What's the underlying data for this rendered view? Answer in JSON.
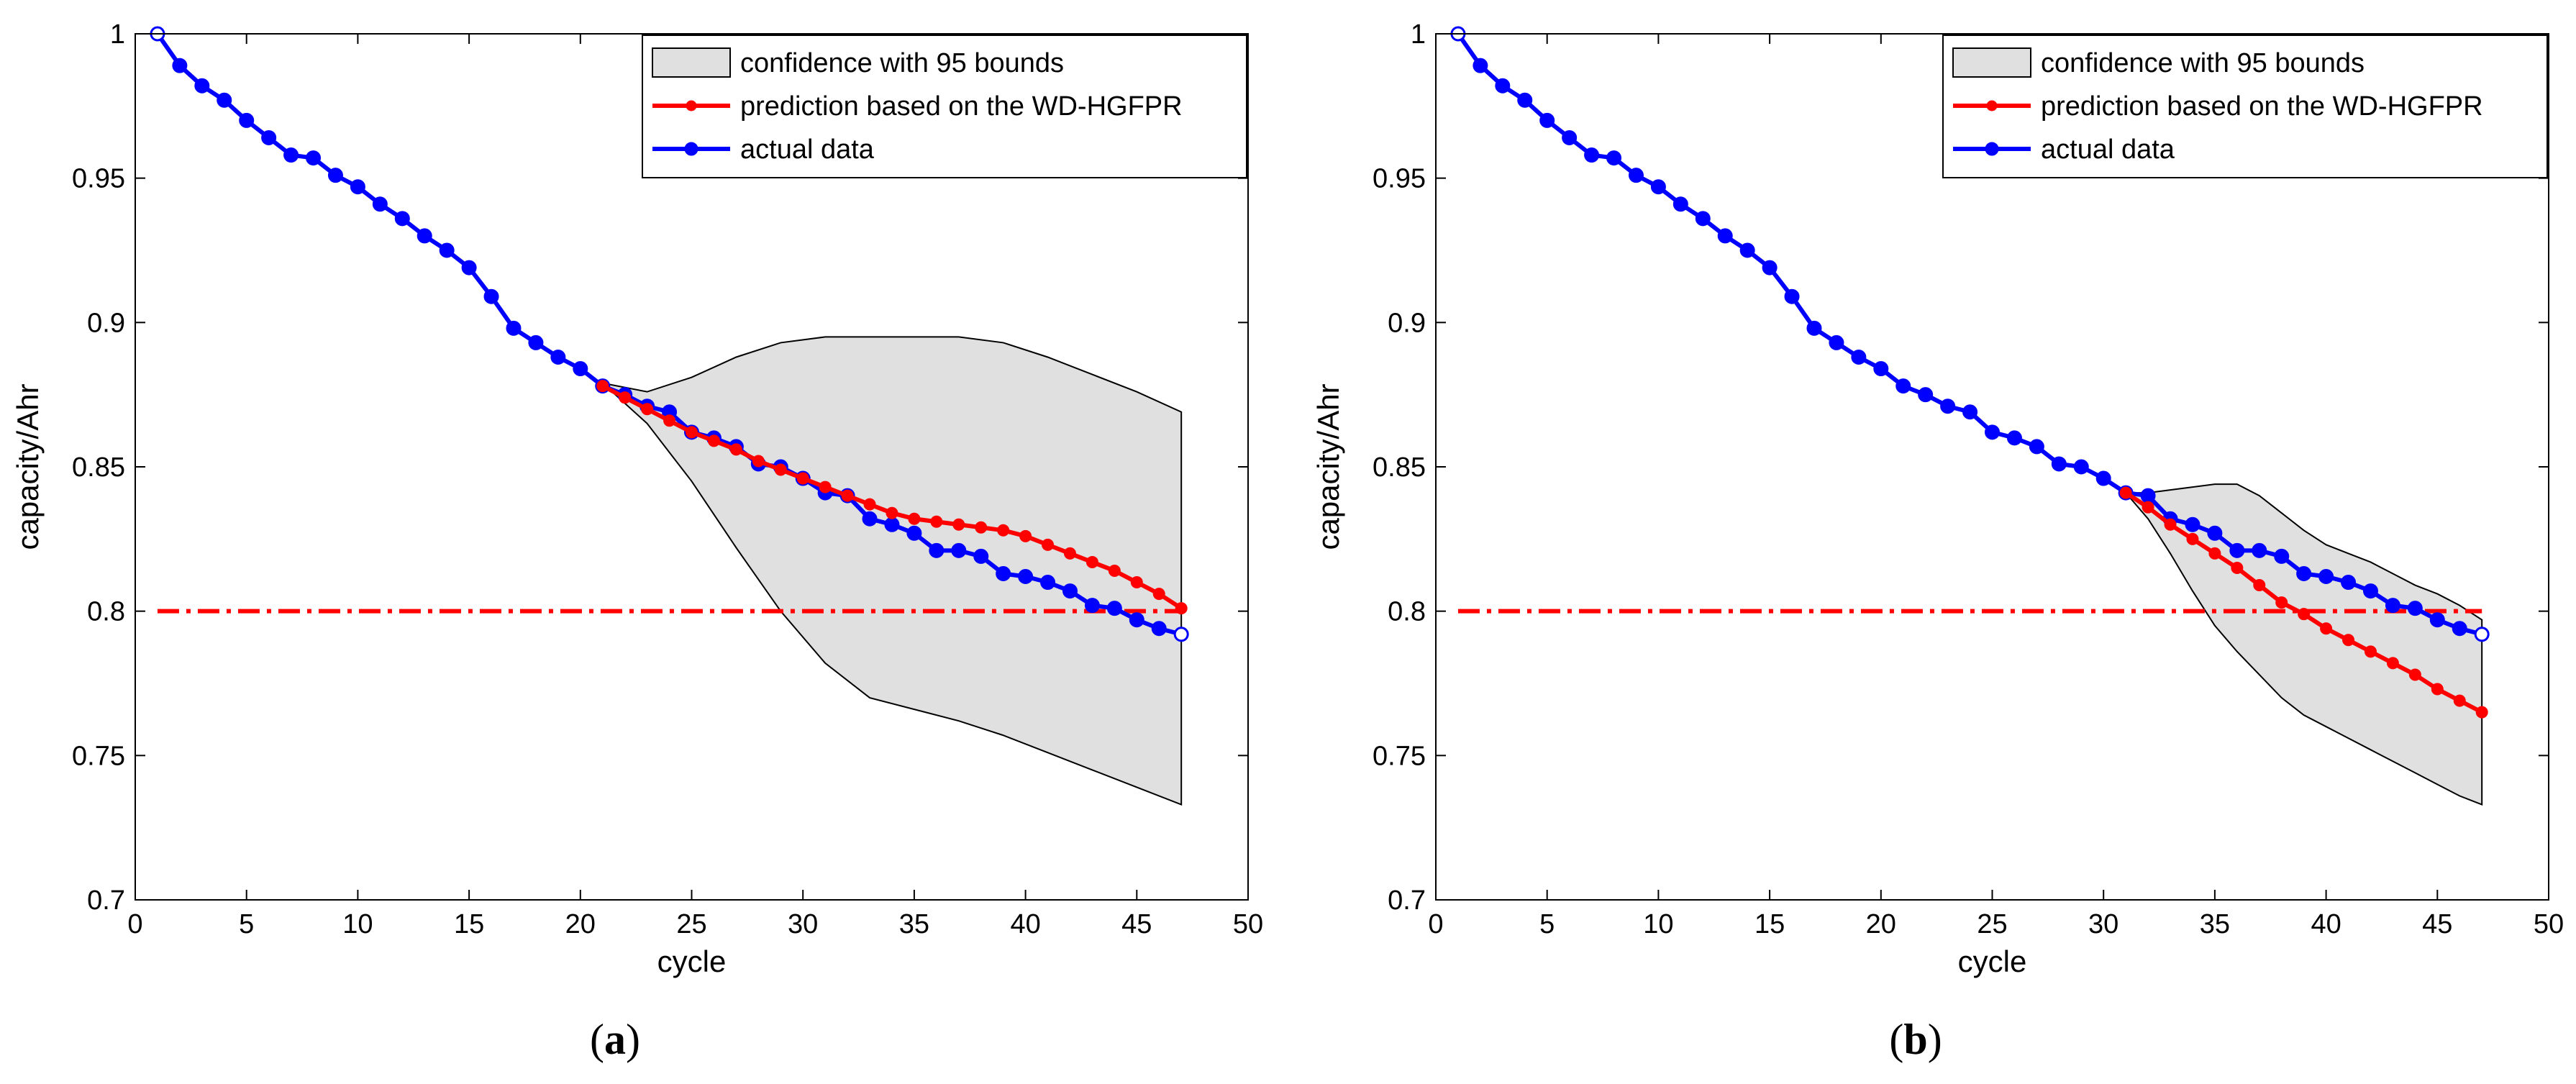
{
  "chart_data": [
    {
      "id": "a",
      "type": "line",
      "caption_letter": "a",
      "xlabel": "cycle",
      "ylabel": "capacity/Ahr",
      "xlim": [
        0,
        50
      ],
      "ylim": [
        0.7,
        1.0
      ],
      "xticks": [
        0,
        5,
        10,
        15,
        20,
        25,
        30,
        35,
        40,
        45,
        50
      ],
      "yticks": [
        0.7,
        0.75,
        0.8,
        0.85,
        0.9,
        0.95,
        1.0
      ],
      "xtick_labels": [
        "0",
        "5",
        "10",
        "15",
        "20",
        "25",
        "30",
        "35",
        "40",
        "45",
        "50"
      ],
      "ytick_labels": [
        "0.7",
        "0.75",
        "0.8",
        "0.85",
        "0.9",
        "0.95",
        "1"
      ],
      "threshold": {
        "y": 0.8,
        "x": [
          1,
          47
        ],
        "color": "#ff0000",
        "style": "dash-dot"
      },
      "legend": [
        {
          "label": "confidence with 95 bounds",
          "kind": "patch"
        },
        {
          "label": "prediction based on the WD-HGFPR",
          "kind": "line",
          "color": "#ff0000"
        },
        {
          "label": "actual data",
          "kind": "line",
          "color": "#0000ff"
        }
      ],
      "legend_position": "top-right",
      "confidence_band": {
        "fill": "#e0e0e0",
        "x": [
          21,
          23,
          25,
          27,
          29,
          31,
          33,
          35,
          37,
          39,
          41,
          43,
          45,
          47
        ],
        "upper": [
          0.879,
          0.876,
          0.881,
          0.888,
          0.893,
          0.895,
          0.895,
          0.895,
          0.895,
          0.893,
          0.888,
          0.882,
          0.876,
          0.869
        ],
        "lower": [
          0.879,
          0.865,
          0.845,
          0.822,
          0.8,
          0.782,
          0.77,
          0.766,
          0.762,
          0.757,
          0.751,
          0.745,
          0.739,
          0.733
        ]
      },
      "series": [
        {
          "name": "actual data",
          "color": "#0000ff",
          "x": [
            1,
            2,
            3,
            4,
            5,
            6,
            7,
            8,
            9,
            10,
            11,
            12,
            13,
            14,
            15,
            16,
            17,
            18,
            19,
            20,
            21,
            22,
            23,
            24,
            25,
            26,
            27,
            28,
            29,
            30,
            31,
            32,
            33,
            34,
            35,
            36,
            37,
            38,
            39,
            40,
            41,
            42,
            43,
            44,
            45,
            46,
            47
          ],
          "values": [
            1.0,
            0.989,
            0.982,
            0.977,
            0.97,
            0.964,
            0.958,
            0.957,
            0.951,
            0.947,
            0.941,
            0.936,
            0.93,
            0.925,
            0.919,
            0.909,
            0.898,
            0.893,
            0.888,
            0.884,
            0.878,
            0.875,
            0.871,
            0.869,
            0.862,
            0.86,
            0.857,
            0.851,
            0.85,
            0.846,
            0.841,
            0.84,
            0.832,
            0.83,
            0.827,
            0.821,
            0.821,
            0.819,
            0.813,
            0.812,
            0.81,
            0.807,
            0.802,
            0.801,
            0.797,
            0.794,
            0.792
          ]
        },
        {
          "name": "prediction based on the WD-HGFPR",
          "color": "#ff0000",
          "x": [
            21,
            22,
            23,
            24,
            25,
            26,
            27,
            28,
            29,
            30,
            31,
            32,
            33,
            34,
            35,
            36,
            37,
            38,
            39,
            40,
            41,
            42,
            43,
            44,
            45,
            46,
            47
          ],
          "values": [
            0.878,
            0.874,
            0.87,
            0.866,
            0.862,
            0.859,
            0.856,
            0.852,
            0.849,
            0.846,
            0.843,
            0.84,
            0.837,
            0.834,
            0.832,
            0.831,
            0.83,
            0.829,
            0.828,
            0.826,
            0.823,
            0.82,
            0.817,
            0.814,
            0.81,
            0.806,
            0.801
          ]
        }
      ]
    },
    {
      "id": "b",
      "type": "line",
      "caption_letter": "b",
      "xlabel": "cycle",
      "ylabel": "capacity/Ahr",
      "xlim": [
        0,
        50
      ],
      "ylim": [
        0.7,
        1.0
      ],
      "xticks": [
        0,
        5,
        10,
        15,
        20,
        25,
        30,
        35,
        40,
        45,
        50
      ],
      "yticks": [
        0.7,
        0.75,
        0.8,
        0.85,
        0.9,
        0.95,
        1.0
      ],
      "xtick_labels": [
        "0",
        "5",
        "10",
        "15",
        "20",
        "25",
        "30",
        "35",
        "40",
        "45",
        "50"
      ],
      "ytick_labels": [
        "0.7",
        "0.75",
        "0.8",
        "0.85",
        "0.9",
        "0.95",
        "1"
      ],
      "threshold": {
        "y": 0.8,
        "x": [
          1,
          47
        ],
        "color": "#ff0000",
        "style": "dash-dot"
      },
      "legend": [
        {
          "label": "confidence with 95 bounds",
          "kind": "patch"
        },
        {
          "label": "prediction based on the WD-HGFPR",
          "kind": "line",
          "color": "#ff0000"
        },
        {
          "label": "actual data",
          "kind": "line",
          "color": "#0000ff"
        }
      ],
      "legend_position": "top-right",
      "confidence_band": {
        "fill": "#e0e0e0",
        "x": [
          31,
          32,
          33,
          34,
          35,
          36,
          37,
          38,
          39,
          40,
          41,
          42,
          43,
          44,
          45,
          46,
          47
        ],
        "upper": [
          0.841,
          0.841,
          0.842,
          0.843,
          0.844,
          0.844,
          0.84,
          0.834,
          0.828,
          0.823,
          0.82,
          0.817,
          0.813,
          0.809,
          0.806,
          0.802,
          0.797
        ],
        "lower": [
          0.841,
          0.832,
          0.82,
          0.807,
          0.795,
          0.786,
          0.778,
          0.77,
          0.764,
          0.76,
          0.756,
          0.752,
          0.748,
          0.744,
          0.74,
          0.736,
          0.733
        ]
      },
      "series": [
        {
          "name": "actual data",
          "color": "#0000ff",
          "x": [
            1,
            2,
            3,
            4,
            5,
            6,
            7,
            8,
            9,
            10,
            11,
            12,
            13,
            14,
            15,
            16,
            17,
            18,
            19,
            20,
            21,
            22,
            23,
            24,
            25,
            26,
            27,
            28,
            29,
            30,
            31,
            32,
            33,
            34,
            35,
            36,
            37,
            38,
            39,
            40,
            41,
            42,
            43,
            44,
            45,
            46,
            47
          ],
          "values": [
            1.0,
            0.989,
            0.982,
            0.977,
            0.97,
            0.964,
            0.958,
            0.957,
            0.951,
            0.947,
            0.941,
            0.936,
            0.93,
            0.925,
            0.919,
            0.909,
            0.898,
            0.893,
            0.888,
            0.884,
            0.878,
            0.875,
            0.871,
            0.869,
            0.862,
            0.86,
            0.857,
            0.851,
            0.85,
            0.846,
            0.841,
            0.84,
            0.832,
            0.83,
            0.827,
            0.821,
            0.821,
            0.819,
            0.813,
            0.812,
            0.81,
            0.807,
            0.802,
            0.801,
            0.797,
            0.794,
            0.792
          ]
        },
        {
          "name": "prediction based on the WD-HGFPR",
          "color": "#ff0000",
          "x": [
            31,
            32,
            33,
            34,
            35,
            36,
            37,
            38,
            39,
            40,
            41,
            42,
            43,
            44,
            45,
            46,
            47
          ],
          "values": [
            0.841,
            0.836,
            0.83,
            0.825,
            0.82,
            0.815,
            0.809,
            0.803,
            0.799,
            0.794,
            0.79,
            0.786,
            0.782,
            0.778,
            0.773,
            0.769,
            0.765
          ]
        }
      ]
    }
  ]
}
